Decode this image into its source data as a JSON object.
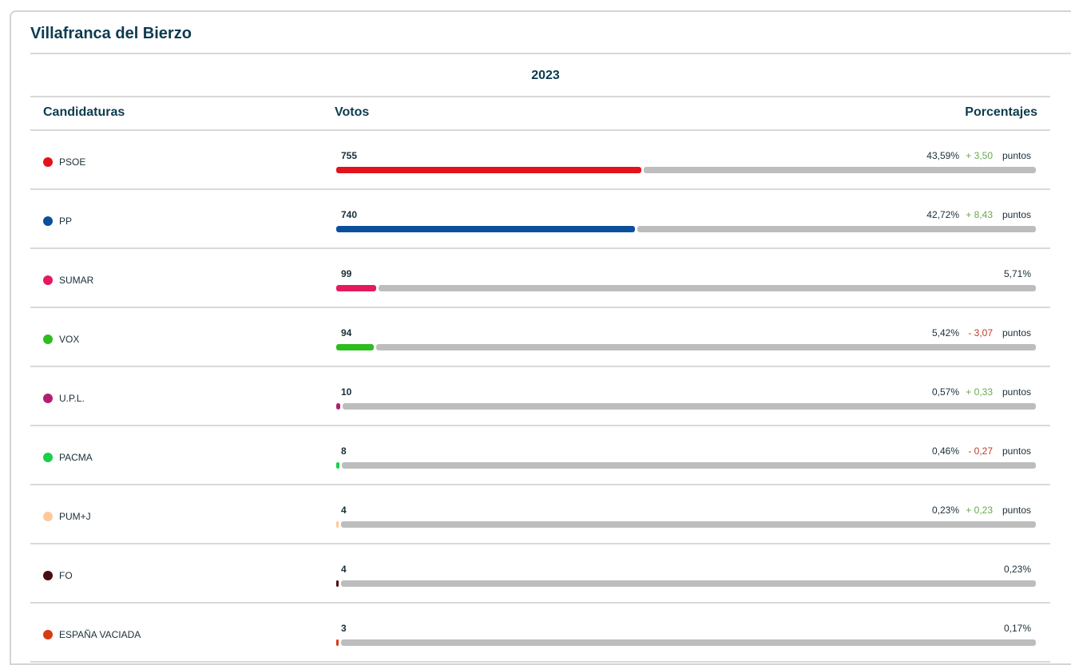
{
  "header": {
    "title": "Villafranca del Bierzo",
    "year": "2023"
  },
  "table": {
    "columns": [
      "Candidaturas",
      "Votos",
      "Porcentajes"
    ],
    "rows": [
      {
        "name": "PSOE",
        "color": "#e2131a",
        "votes": 755,
        "percent": {
          "value": 43.59,
          "label": "43,59%"
        },
        "change": "+ 3,50",
        "change_color": "#6aa84f",
        "unit": "puntos"
      },
      {
        "name": "PP",
        "color": "#0b4f9c",
        "votes": 740,
        "percent": {
          "value": 42.72,
          "label": "42,72%"
        },
        "change": "+ 8,43",
        "change_color": "#6aa84f",
        "unit": "puntos"
      },
      {
        "name": "SUMAR",
        "color": "#e5195f",
        "votes": 99,
        "percent": {
          "value": 5.71,
          "label": "5,71%"
        }
      },
      {
        "name": "VOX",
        "color": "#2cbd1e",
        "votes": 94,
        "percent": {
          "value": 5.42,
          "label": "5,42%"
        },
        "change": "- 3,07",
        "change_color": "#c0392b",
        "unit": "puntos"
      },
      {
        "name": "U.P.L.",
        "color": "#b0206f",
        "votes": 10,
        "percent": {
          "value": 0.57,
          "label": "0,57%"
        },
        "change": "+ 0,33",
        "change_color": "#6aa84f",
        "unit": "puntos"
      },
      {
        "name": "PACMA",
        "color": "#19d04a",
        "votes": 8,
        "percent": {
          "value": 0.46,
          "label": "0,46%"
        },
        "change": "- 0,27",
        "change_color": "#c0392b",
        "unit": "puntos"
      },
      {
        "name": "PUM+J",
        "color": "#ffc89a",
        "votes": 4,
        "percent": {
          "value": 0.23,
          "label": "0,23%"
        },
        "change": "+ 0,23",
        "change_color": "#6aa84f",
        "unit": "puntos"
      },
      {
        "name": "FO",
        "color": "#4a0c10",
        "votes": 4,
        "percent": {
          "value": 0.23,
          "label": "0,23%"
        }
      },
      {
        "name": "ESPAÑA VACIADA",
        "color": "#d63c14",
        "votes": 3,
        "percent": {
          "value": 0.17,
          "label": "0,17%"
        }
      }
    ]
  }
}
